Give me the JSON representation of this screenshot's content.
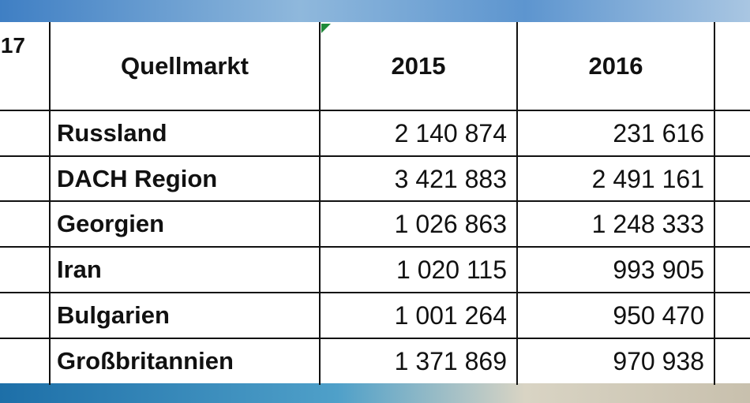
{
  "header": {
    "partial_column": "17",
    "columns": [
      "Quellmarkt",
      "2015",
      "2016"
    ]
  },
  "table": {
    "rows": [
      [
        "Russland",
        "2 140 874",
        "231 616"
      ],
      [
        "DACH Region",
        "3 421 883",
        "2 491 161"
      ],
      [
        "Georgien",
        "1 026 863",
        "1 248 333"
      ],
      [
        "Iran",
        "1 020 115",
        "993 905"
      ],
      [
        "Bulgarien",
        "1 001 264",
        "950 470"
      ],
      [
        "Großbritannien",
        "1 371 869",
        "970 938"
      ]
    ]
  }
}
